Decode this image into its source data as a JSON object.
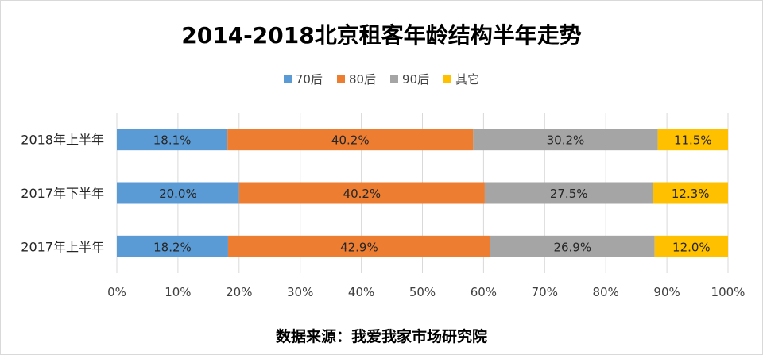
{
  "chart_data": {
    "type": "bar",
    "orientation": "horizontal",
    "stacked": "percent",
    "title": "2014-2018北京租客年龄结构半年走势",
    "categories": [
      "2018年上半年",
      "2017年下半年",
      "2017年上半年"
    ],
    "series": [
      {
        "name": "70后",
        "color": "#5B9BD5",
        "values": [
          18.1,
          20.0,
          18.2
        ],
        "labels": [
          "18.1%",
          "20.0%",
          "18.2%"
        ]
      },
      {
        "name": "80后",
        "color": "#ED7D31",
        "values": [
          40.2,
          40.2,
          42.9
        ],
        "labels": [
          "40.2%",
          "40.2%",
          "42.9%"
        ]
      },
      {
        "name": "90后",
        "color": "#A5A5A5",
        "values": [
          30.2,
          27.5,
          26.9
        ],
        "labels": [
          "30.2%",
          "27.5%",
          "26.9%"
        ]
      },
      {
        "name": "其它",
        "color": "#FFC000",
        "values": [
          11.5,
          12.3,
          12.0
        ],
        "labels": [
          "11.5%",
          "12.3%",
          "12.0%"
        ]
      }
    ],
    "xlim": [
      0,
      100
    ],
    "xticks": [
      "0%",
      "10%",
      "20%",
      "30%",
      "40%",
      "50%",
      "60%",
      "70%",
      "80%",
      "90%",
      "100%"
    ],
    "grid": true,
    "legend_position": "top"
  },
  "source": "数据来源：我爱我家市场研究院"
}
